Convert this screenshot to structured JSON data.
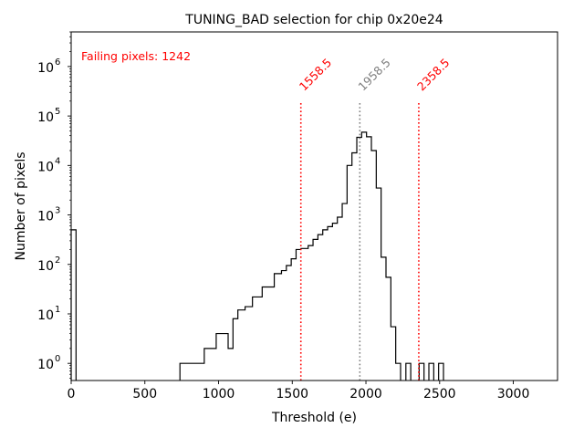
{
  "chart_data": {
    "type": "histogram",
    "title": "TUNING_BAD selection for chip 0x20e24",
    "xlabel": "Threshold (e)",
    "ylabel": "Number of pixels",
    "xlim": [
      0,
      3300
    ],
    "ylim": [
      0.45,
      5000000
    ],
    "yscale": "log",
    "grid": false,
    "x_ticks": [
      0,
      500,
      1000,
      1500,
      2000,
      2500,
      3000
    ],
    "x_tick_labels": [
      "0",
      "500",
      "1000",
      "1500",
      "2000",
      "2500",
      "3000"
    ],
    "y_ticks": [
      1,
      10,
      100,
      1000,
      10000,
      100000,
      1000000
    ],
    "y_tick_bases": [
      "10",
      "10",
      "10",
      "10",
      "10",
      "10",
      "10"
    ],
    "y_tick_exponents": [
      "0",
      "1",
      "2",
      "3",
      "4",
      "5",
      "6"
    ],
    "bin_width": 33,
    "bins": [
      {
        "x0": 0,
        "x1": 33,
        "count": 500
      },
      {
        "x0": 738,
        "x1": 903,
        "count": 1
      },
      {
        "x0": 903,
        "x1": 984,
        "count": 2
      },
      {
        "x0": 984,
        "x1": 1065,
        "count": 4
      },
      {
        "x0": 1065,
        "x1": 1098,
        "count": 2
      },
      {
        "x0": 1098,
        "x1": 1131,
        "count": 8
      },
      {
        "x0": 1131,
        "x1": 1180,
        "count": 12
      },
      {
        "x0": 1180,
        "x1": 1230,
        "count": 14
      },
      {
        "x0": 1230,
        "x1": 1296,
        "count": 22
      },
      {
        "x0": 1296,
        "x1": 1378,
        "count": 35
      },
      {
        "x0": 1378,
        "x1": 1427,
        "count": 65
      },
      {
        "x0": 1427,
        "x1": 1460,
        "count": 75
      },
      {
        "x0": 1460,
        "x1": 1493,
        "count": 95
      },
      {
        "x0": 1493,
        "x1": 1526,
        "count": 130
      },
      {
        "x0": 1526,
        "x1": 1559,
        "count": 200
      },
      {
        "x0": 1559,
        "x1": 1608,
        "count": 210
      },
      {
        "x0": 1608,
        "x1": 1641,
        "count": 240
      },
      {
        "x0": 1641,
        "x1": 1674,
        "count": 320
      },
      {
        "x0": 1674,
        "x1": 1707,
        "count": 400
      },
      {
        "x0": 1707,
        "x1": 1740,
        "count": 500
      },
      {
        "x0": 1740,
        "x1": 1773,
        "count": 580
      },
      {
        "x0": 1773,
        "x1": 1806,
        "count": 680
      },
      {
        "x0": 1806,
        "x1": 1839,
        "count": 900
      },
      {
        "x0": 1839,
        "x1": 1872,
        "count": 1700
      },
      {
        "x0": 1872,
        "x1": 1905,
        "count": 10000
      },
      {
        "x0": 1905,
        "x1": 1938,
        "count": 18000
      },
      {
        "x0": 1938,
        "x1": 1971,
        "count": 37000
      },
      {
        "x0": 1971,
        "x1": 2004,
        "count": 47000
      },
      {
        "x0": 2004,
        "x1": 2037,
        "count": 38000
      },
      {
        "x0": 2037,
        "x1": 2070,
        "count": 20000
      },
      {
        "x0": 2070,
        "x1": 2103,
        "count": 3500
      },
      {
        "x0": 2103,
        "x1": 2136,
        "count": 140
      },
      {
        "x0": 2136,
        "x1": 2169,
        "count": 55
      },
      {
        "x0": 2169,
        "x1": 2202,
        "count": 5.5
      },
      {
        "x0": 2202,
        "x1": 2235,
        "count": 1
      },
      {
        "x0": 2271,
        "x1": 2304,
        "count": 1
      },
      {
        "x0": 2361,
        "x1": 2394,
        "count": 1
      },
      {
        "x0": 2427,
        "x1": 2460,
        "count": 1
      },
      {
        "x0": 2493,
        "x1": 2526,
        "count": 1
      }
    ],
    "vlines": [
      {
        "x": 1558.5,
        "label": "1558.5",
        "color": "#ff0000",
        "ymax": 200000
      },
      {
        "x": 1958.5,
        "label": "1958.5",
        "color": "#808080",
        "ymax": 200000
      },
      {
        "x": 2358.5,
        "label": "2358.5",
        "color": "#ff0000",
        "ymax": 200000
      }
    ],
    "annotation": {
      "text": "Failing pixels: 1242",
      "color": "#ff0000"
    },
    "line_color": "#000000"
  }
}
